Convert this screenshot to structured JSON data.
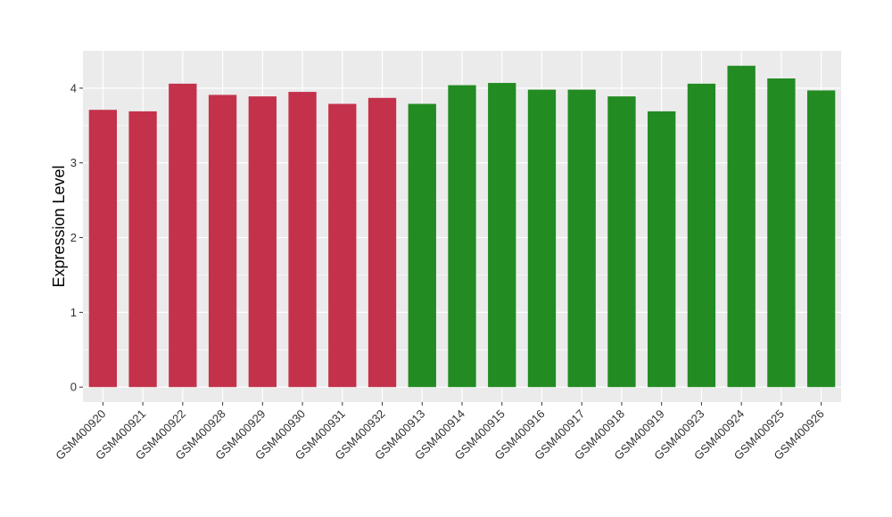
{
  "chart_data": {
    "type": "bar",
    "title": "",
    "xlabel": "",
    "ylabel": "Expression Level",
    "ylim": [
      -0.2,
      4.5
    ],
    "yticks": [
      0,
      1,
      2,
      3,
      4
    ],
    "grid": true,
    "legend": "none",
    "background_color": "#EBEBEB",
    "grid_color": "#FFFFFF",
    "categories": [
      "GSM400920",
      "GSM400921",
      "GSM400922",
      "GSM400928",
      "GSM400929",
      "GSM400930",
      "GSM400931",
      "GSM400932",
      "GSM400913",
      "GSM400914",
      "GSM400915",
      "GSM400916",
      "GSM400917",
      "GSM400918",
      "GSM400919",
      "GSM400923",
      "GSM400924",
      "GSM400925",
      "GSM400926"
    ],
    "values": [
      3.71,
      3.69,
      4.06,
      3.91,
      3.89,
      3.95,
      3.79,
      3.87,
      3.79,
      4.04,
      4.07,
      3.98,
      3.98,
      3.89,
      3.69,
      4.06,
      4.3,
      4.13,
      3.97
    ],
    "bar_colors": [
      "#C4314B",
      "#C4314B",
      "#C4314B",
      "#C4314B",
      "#C4314B",
      "#C4314B",
      "#C4314B",
      "#C4314B",
      "#228B22",
      "#228B22",
      "#228B22",
      "#228B22",
      "#228B22",
      "#228B22",
      "#228B22",
      "#228B22",
      "#228B22",
      "#228B22",
      "#228B22"
    ]
  }
}
